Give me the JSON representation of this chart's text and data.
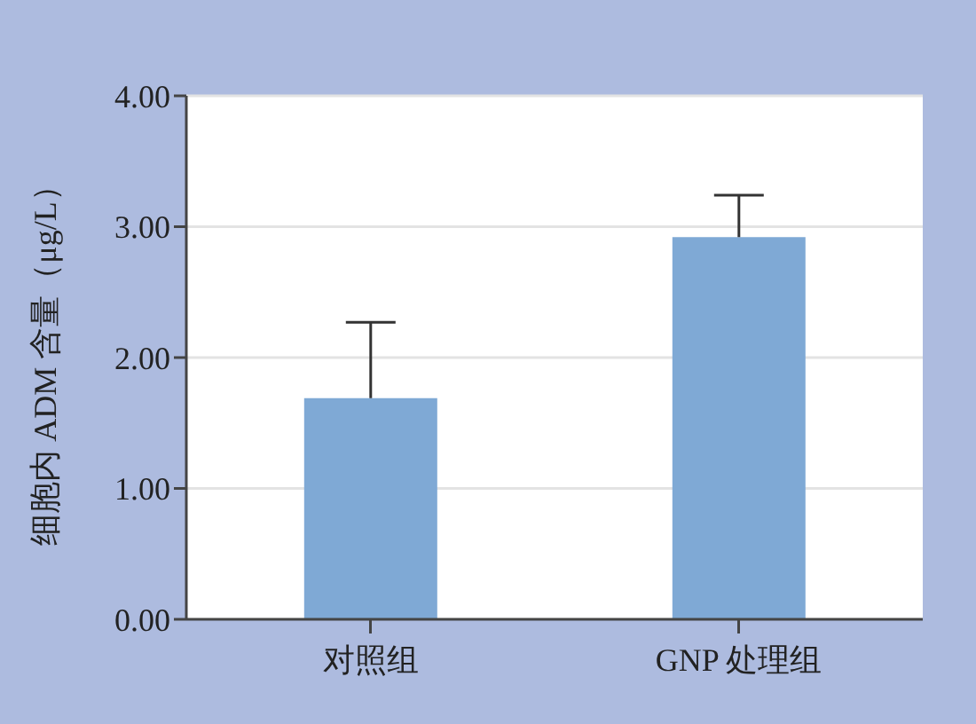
{
  "chart_data": {
    "type": "bar",
    "ylabel": "细胞内 ADM 含量（μg/L）",
    "categories": [
      "对照组",
      "GNP 处理组"
    ],
    "values": [
      1.69,
      2.92
    ],
    "errors": [
      [
        1.69,
        2.27
      ],
      [
        2.92,
        3.24
      ]
    ],
    "color": "#7fa9d5",
    "ylim": [
      0,
      4
    ],
    "yticks": [
      {
        "value": 0,
        "label": "0.00"
      },
      {
        "value": 1,
        "label": "1.00"
      },
      {
        "value": 2,
        "label": "2.00"
      },
      {
        "value": 3,
        "label": "3.00"
      },
      {
        "value": 4,
        "label": "4.00"
      }
    ],
    "grid": "y"
  }
}
